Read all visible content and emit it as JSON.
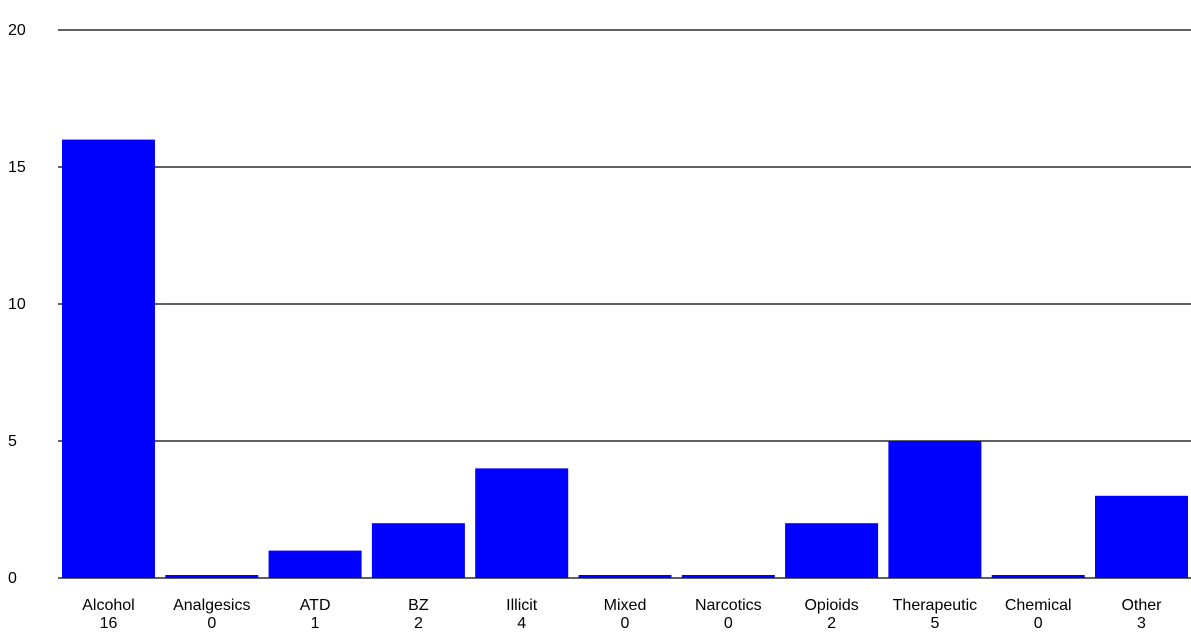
{
  "chart_data": {
    "type": "bar",
    "categories": [
      "Alcohol",
      "Analgesics",
      "ATD",
      "BZ",
      "Illicit",
      "Mixed",
      "Narcotics",
      "Opioids",
      "Therapeutic",
      "Chemical",
      "Other"
    ],
    "values": [
      16,
      0,
      1,
      2,
      4,
      0,
      0,
      2,
      5,
      0,
      3
    ],
    "value_labels": [
      "16",
      "0",
      "1",
      "2",
      "4",
      "0",
      "0",
      "2",
      "5",
      "0",
      "3"
    ],
    "ylim": [
      0,
      20
    ],
    "yticks": [
      0,
      5,
      10,
      15,
      20
    ],
    "ytick_labels": [
      "0",
      "5",
      "10",
      "15",
      "20"
    ],
    "grid": true,
    "legend": "none",
    "title": "",
    "xlabel": "",
    "ylabel": "",
    "colors": {
      "bar": "#0000ff",
      "grid": "#000000",
      "text": "#000000"
    }
  }
}
